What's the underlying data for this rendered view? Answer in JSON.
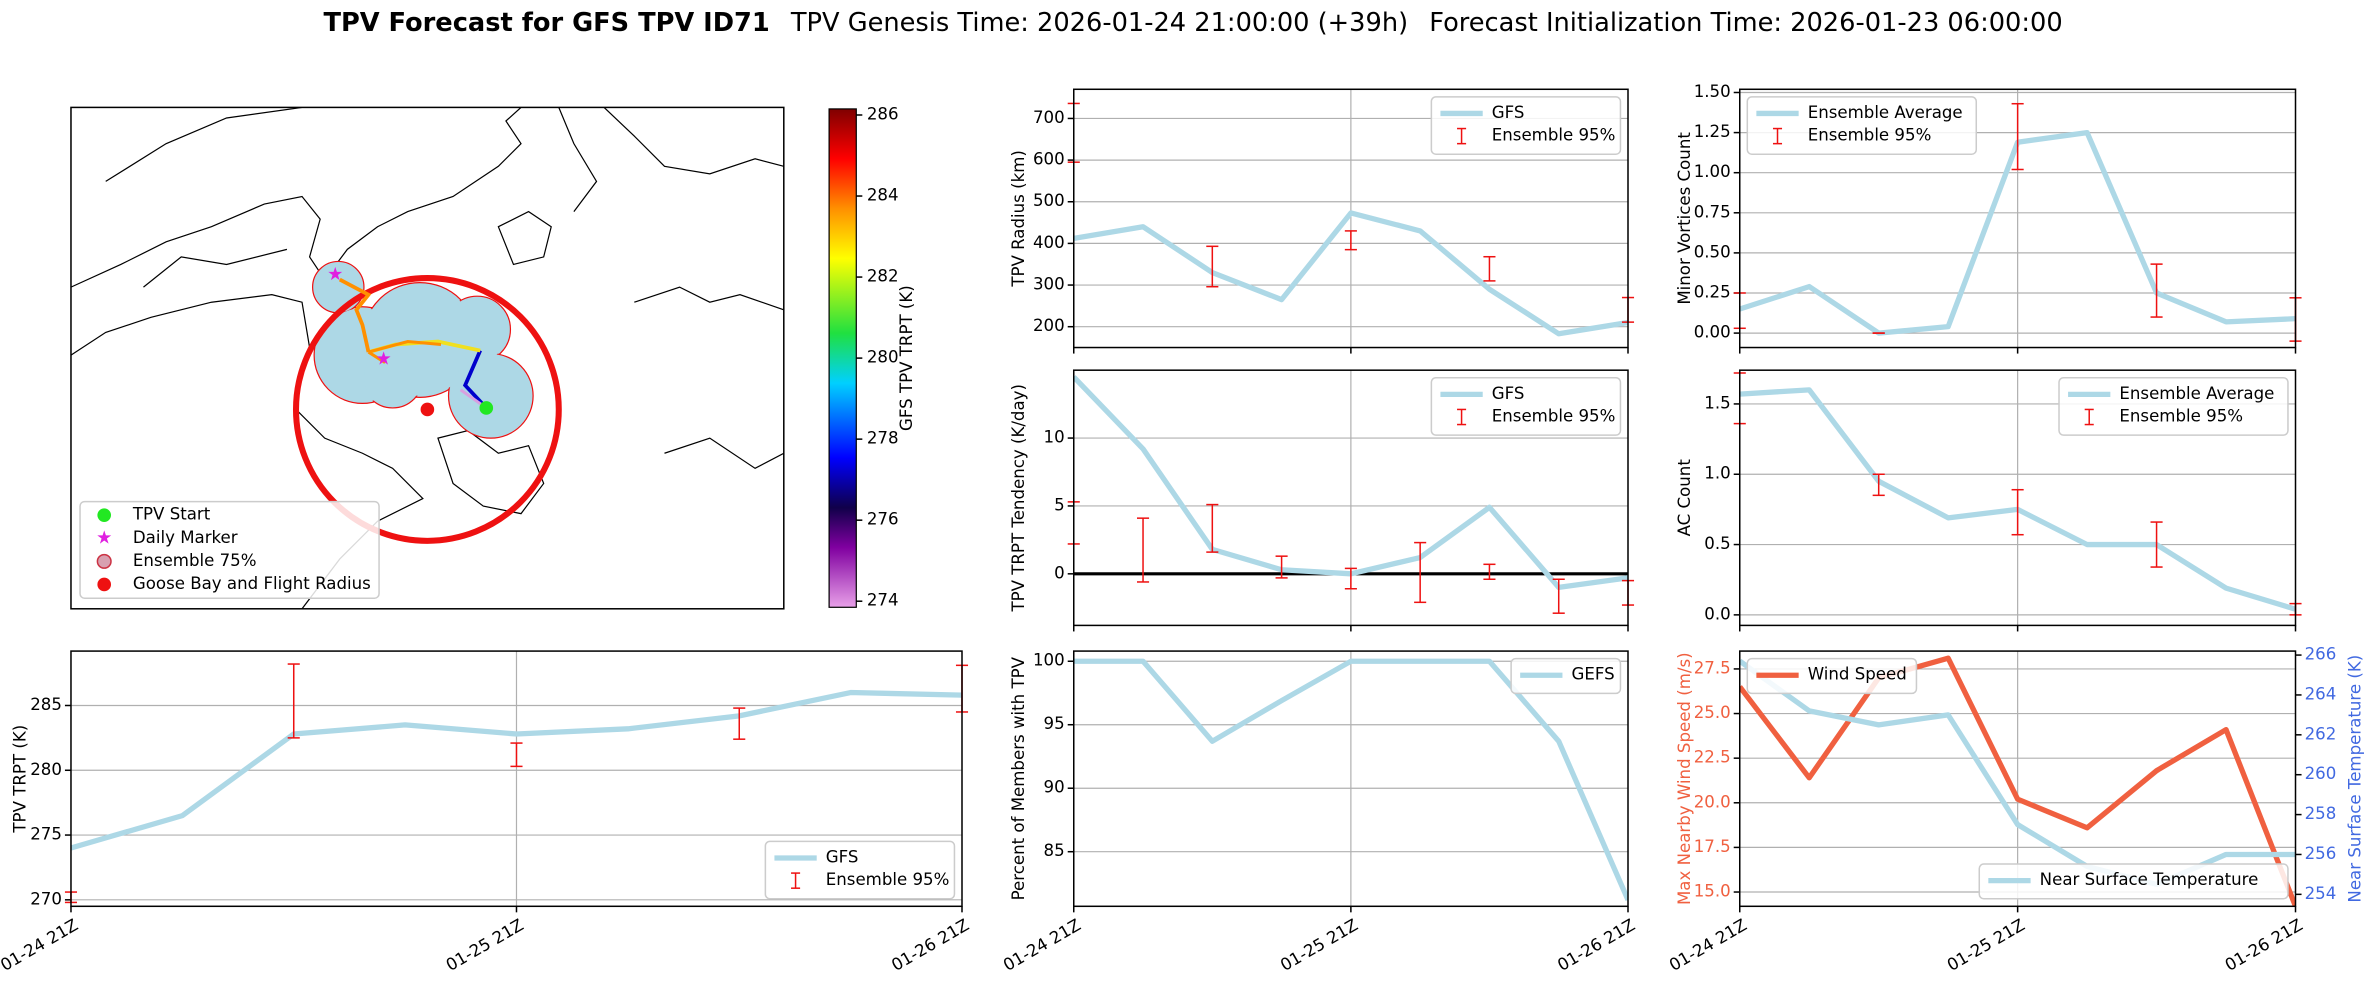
{
  "title_bold": "TPV Forecast for GFS TPV ID71",
  "title_genesis": "TPV Genesis Time: 2026-01-24 21:00:00 (+39h)",
  "title_init": "Forecast Initialization Time: 2026-01-23 06:00:00",
  "chart_data": [
    {
      "type": "map",
      "colorbar_label": "GFS TPV TRPT (K)",
      "clim": [
        273.85,
        286.15
      ],
      "cticks": [
        274,
        276,
        278,
        280,
        282,
        284,
        286
      ],
      "legend": [
        {
          "label": "TPV Start",
          "color": "#22e822",
          "marker": "circle"
        },
        {
          "label": "Daily Marker",
          "color": "#e020e0",
          "marker": "star"
        },
        {
          "label": "Ensemble 75%",
          "color": "#d8a0b0",
          "marker": "ring"
        },
        {
          "label": "Goose Bay and Flight Radius",
          "color": "#ee1111",
          "marker": "circle"
        }
      ]
    },
    {
      "type": "line",
      "ylabel": "TPV Radius (km)",
      "ylim": [
        150,
        770
      ],
      "yticks": [
        200,
        300,
        400,
        500,
        600,
        700
      ],
      "grid": true,
      "legend": "upper right",
      "series": [
        {
          "name": "GFS",
          "color": "#add8e6",
          "values": [
            412,
            440,
            330,
            265,
            473,
            430,
            290,
            183,
            210
          ]
        }
      ],
      "error_bars": {
        "name": "Ensemble 95%",
        "color": "#ee1111",
        "low": [
          595,
          null,
          296,
          null,
          385,
          null,
          310,
          null,
          211
        ],
        "high": [
          736,
          null,
          393,
          null,
          430,
          null,
          368,
          null,
          270
        ]
      }
    },
    {
      "type": "line",
      "ylabel": "Minor Vortices Count",
      "ylim": [
        -0.09,
        1.52
      ],
      "yticks": [
        {
          "value": 0,
          "label": "0.00"
        },
        0.25,
        {
          "value": 0.5,
          "label": "0.50"
        },
        0.75,
        {
          "value": 1,
          "label": "1.00"
        },
        1.25,
        {
          "value": 1.5,
          "label": "1.50"
        }
      ],
      "grid": true,
      "legend": "upper left",
      "series": [
        {
          "name": "Ensemble Average",
          "color": "#add8e6",
          "values": [
            0.15,
            0.29,
            0.0,
            0.04,
            1.19,
            1.25,
            0.25,
            0.07,
            0.09
          ]
        }
      ],
      "error_bars": {
        "name": "Ensemble 95%",
        "color": "#ee1111",
        "low": [
          0.03,
          null,
          0.0,
          null,
          1.02,
          null,
          0.1,
          null,
          -0.05
        ],
        "high": [
          0.25,
          null,
          0.0,
          null,
          1.43,
          null,
          0.43,
          null,
          0.22
        ]
      }
    },
    {
      "type": "line",
      "ylabel": "TPV TRPT Tendency (K/day)",
      "ylim": [
        -3.8,
        15
      ],
      "yticks": [
        0,
        5,
        10
      ],
      "grid": true,
      "legend": "upper right",
      "hline": 0,
      "series": [
        {
          "name": "GFS",
          "color": "#add8e6",
          "values": [
            14.5,
            9.2,
            1.8,
            0.3,
            0.0,
            1.2,
            4.9,
            -1.0,
            -0.3
          ]
        }
      ],
      "error_bars": {
        "name": "Ensemble 95%",
        "color": "#ee1111",
        "low": [
          2.2,
          -0.6,
          1.6,
          -0.3,
          -1.1,
          -2.1,
          -0.4,
          -2.9,
          -2.3
        ],
        "high": [
          5.3,
          4.1,
          5.1,
          1.3,
          0.4,
          2.3,
          0.7,
          -0.4,
          -0.5
        ]
      }
    },
    {
      "type": "line",
      "ylabel": "AC Count",
      "ylim": [
        -0.075,
        1.74
      ],
      "yticks": [
        {
          "value": 0,
          "label": "0.0"
        },
        0.5,
        {
          "value": 1,
          "label": "1.0"
        },
        1.5
      ],
      "grid": true,
      "legend": "upper right",
      "series": [
        {
          "name": "Ensemble Average",
          "color": "#add8e6",
          "values": [
            1.57,
            1.6,
            0.95,
            0.69,
            0.75,
            0.5,
            0.5,
            0.19,
            0.04
          ]
        }
      ],
      "error_bars": {
        "name": "Ensemble 95%",
        "color": "#ee1111",
        "low": [
          1.36,
          null,
          0.85,
          null,
          0.57,
          null,
          0.34,
          null,
          0.0
        ],
        "high": [
          1.72,
          null,
          1.0,
          null,
          0.89,
          null,
          0.66,
          null,
          0.08
        ]
      }
    },
    {
      "type": "line",
      "ylabel": "TPV TRPT (K)",
      "ylim": [
        269.5,
        289.2
      ],
      "yticks": [
        270,
        275,
        280,
        285
      ],
      "grid": true,
      "legend": "lower right",
      "categories": [
        "01-24 21Z",
        null,
        null,
        null,
        "01-25 21Z",
        null,
        null,
        null,
        "01-26 21Z"
      ],
      "series": [
        {
          "name": "GFS",
          "color": "#add8e6",
          "values": [
            274.0,
            276.5,
            282.8,
            283.5,
            282.8,
            283.2,
            284.2,
            286.0,
            285.8
          ]
        }
      ],
      "error_bars": {
        "name": "Ensemble 95%",
        "color": "#ee1111",
        "low": [
          269.8,
          null,
          282.5,
          null,
          280.3,
          null,
          282.4,
          null,
          284.5
        ],
        "high": [
          270.6,
          null,
          288.2,
          null,
          282.1,
          null,
          284.8,
          null,
          288.1
        ]
      }
    },
    {
      "type": "line",
      "ylabel": "Percent of Members with TPV",
      "ylim": [
        80.7,
        100.8
      ],
      "yticks": [
        85,
        90,
        95,
        100
      ],
      "grid": true,
      "legend": "upper right",
      "categories": [
        "01-24 21Z",
        null,
        null,
        null,
        "01-25 21Z",
        null,
        null,
        null,
        "01-26 21Z"
      ],
      "series": [
        {
          "name": "GEFS",
          "color": "#add8e6",
          "values": [
            100,
            100,
            93.7,
            96.9,
            100,
            100,
            100,
            93.7,
            81.2
          ]
        }
      ]
    },
    {
      "type": "line",
      "ylabel": "Max Nearby Wind Speed (m/s)",
      "y2label": "Near Surface Temperature (K)",
      "ylim": [
        14.2,
        28.5
      ],
      "yticks": [
        {
          "value": 15,
          "label": "15.0"
        },
        17.5,
        {
          "value": 20,
          "label": "20.0"
        },
        22.5,
        {
          "value": 25,
          "label": "25.0"
        },
        27.5
      ],
      "y2lim": [
        253.4,
        266.2
      ],
      "y2ticks": [
        254,
        256,
        258,
        260,
        262,
        264,
        266
      ],
      "grid": true,
      "legend": "upper left",
      "legend_y2": "lower right",
      "ycolor": "#f06040",
      "y2color": "#4169e1",
      "categories": [
        "01-24 21Z",
        null,
        null,
        null,
        "01-25 21Z",
        null,
        null,
        null,
        "01-26 21Z"
      ],
      "series": [
        {
          "name": "Wind Speed",
          "color": "#f06040",
          "values": [
            26.5,
            21.4,
            27.0,
            28.1,
            20.2,
            18.6,
            21.8,
            24.1,
            14.2
          ]
        },
        {
          "name": "Near Surface Temperature",
          "color": "#add8e6",
          "axis": "y2",
          "values": [
            265.7,
            263.2,
            262.5,
            263.0,
            257.5,
            255.4,
            254.5,
            256.0,
            256.0
          ]
        }
      ]
    }
  ]
}
